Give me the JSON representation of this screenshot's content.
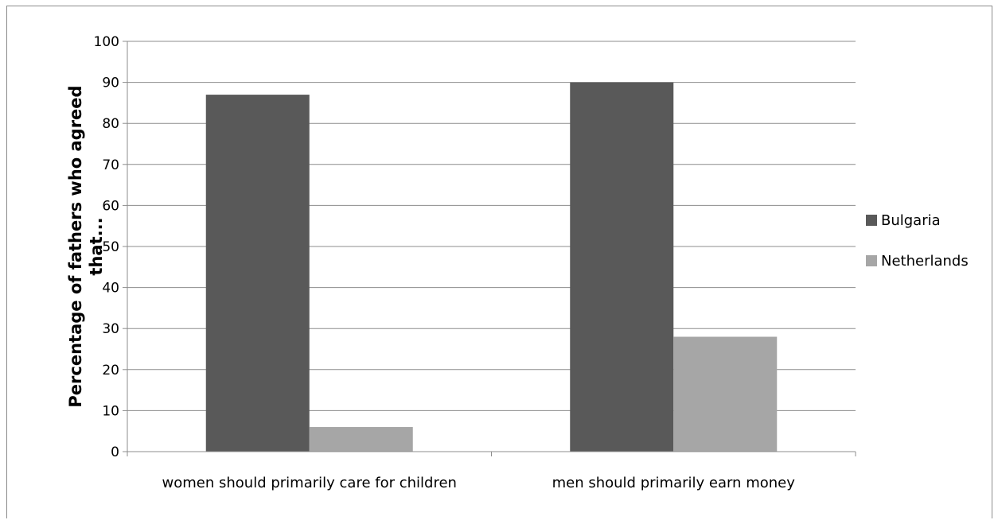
{
  "chart_data": {
    "type": "bar",
    "title": "",
    "xlabel": "",
    "ylabel_lines": [
      "Percentage of fathers who agreed",
      "that..."
    ],
    "categories": [
      "women should primarily care for children",
      "men should primarily earn money"
    ],
    "series": [
      {
        "name": "Bulgaria",
        "values": [
          87,
          90
        ],
        "color": "#595959"
      },
      {
        "name": "Netherlands",
        "values": [
          6,
          28
        ],
        "color": "#a6a6a6"
      }
    ],
    "ylim": [
      0,
      100
    ],
    "yticks": [
      0,
      10,
      20,
      30,
      40,
      50,
      60,
      70,
      80,
      90,
      100
    ],
    "grid": true,
    "legend_position": "right",
    "gridline_color": "#8c8c8c"
  }
}
